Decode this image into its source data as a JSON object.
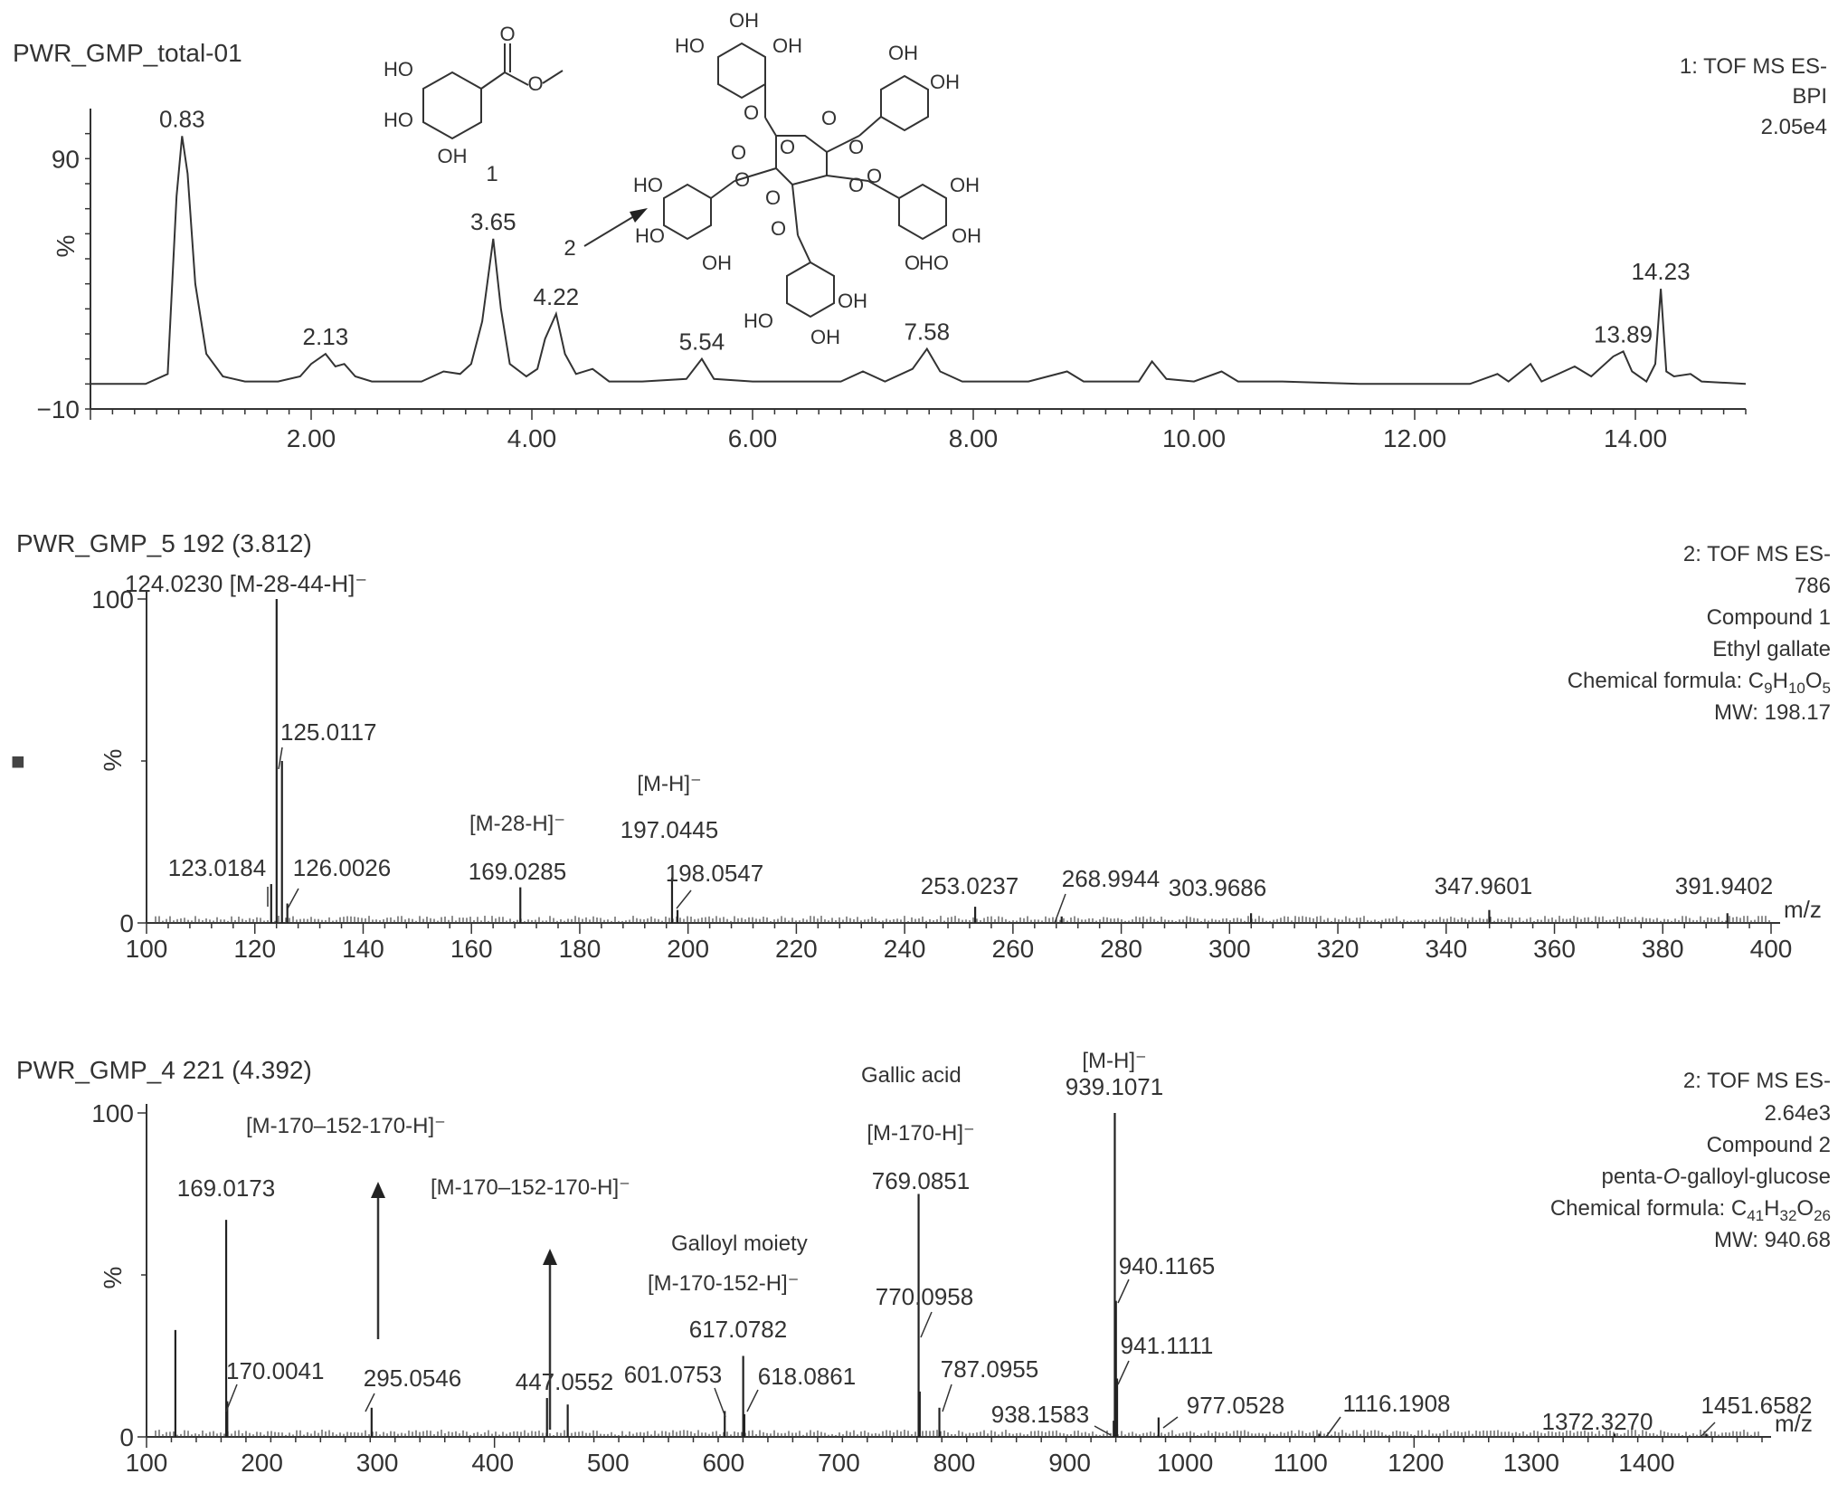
{
  "chart_data": [
    {
      "type": "line",
      "panel": "chromatogram",
      "title": "PWR_GMP_total-01",
      "info": [
        "1: TOF MS ES-",
        "BPI",
        "2.05e4"
      ],
      "ylabel": "%",
      "xlim": [
        0.0,
        15.0
      ],
      "ylim": [
        -10,
        110
      ],
      "x_ticks": [
        "2.00",
        "4.00",
        "6.00",
        "8.00",
        "10.00",
        "12.00",
        "14.00"
      ],
      "y_ticks": [
        "90",
        "-10"
      ],
      "series": [
        {
          "x": [
            0.0,
            0.5,
            0.7,
            0.78,
            0.83,
            0.88,
            0.95,
            1.05,
            1.2,
            1.4,
            1.7,
            1.9,
            2.0,
            2.13,
            2.22,
            2.3,
            2.4,
            2.55,
            3.0,
            3.2,
            3.35,
            3.45,
            3.55,
            3.65,
            3.72,
            3.8,
            3.95,
            4.05,
            4.12,
            4.22,
            4.3,
            4.4,
            4.55,
            4.7,
            5.0,
            5.4,
            5.54,
            5.65,
            6.0,
            6.8,
            7.0,
            7.2,
            7.45,
            7.58,
            7.7,
            7.9,
            8.5,
            8.85,
            9.0,
            9.5,
            9.62,
            9.75,
            10.0,
            10.25,
            10.4,
            10.8,
            11.5,
            12.5,
            12.75,
            12.85,
            13.05,
            13.15,
            13.45,
            13.6,
            13.8,
            13.89,
            13.97,
            14.1,
            14.18,
            14.23,
            14.28,
            14.35,
            14.5,
            14.6,
            15.0
          ],
          "y": [
            0,
            0,
            4,
            75,
            99,
            84,
            40,
            12,
            3,
            1,
            1,
            3,
            8,
            12,
            7,
            8,
            3,
            1,
            1,
            5,
            4,
            8,
            25,
            58,
            30,
            8,
            3,
            6,
            18,
            28,
            12,
            4,
            6,
            1,
            1,
            2,
            10,
            2,
            1,
            1,
            5,
            1,
            6,
            14,
            5,
            1,
            1,
            5,
            1,
            1,
            9,
            2,
            1,
            5,
            1,
            1,
            0,
            0,
            4,
            1,
            8,
            1,
            7,
            3,
            11,
            13,
            5,
            1,
            8,
            38,
            5,
            3,
            4,
            1,
            0
          ]
        }
      ],
      "peak_labels": [
        {
          "x": 0.83,
          "y": 99,
          "label": "0.83"
        },
        {
          "x": 2.13,
          "y": 12,
          "label": "2.13"
        },
        {
          "x": 3.65,
          "y": 58,
          "label": "3.65"
        },
        {
          "x": 4.22,
          "y": 28,
          "label": "4.22"
        },
        {
          "x": 5.54,
          "y": 10,
          "label": "5.54"
        },
        {
          "x": 7.58,
          "y": 14,
          "label": "7.58"
        },
        {
          "x": 13.89,
          "y": 13,
          "label": "13.89"
        },
        {
          "x": 14.23,
          "y": 38,
          "label": "14.23"
        }
      ],
      "compound_markers": [
        "1",
        "2"
      ],
      "structure_atoms": {
        "ethyl_gallate": [
          "O",
          "HO",
          "O",
          "HO",
          "OH"
        ],
        "pgg": [
          "OH",
          "HO",
          "OH",
          "O",
          "O",
          "OH",
          "OH",
          "O",
          "O",
          "O",
          "O",
          "O",
          "HO",
          "O",
          "O",
          "O",
          "OH",
          "HO",
          "OH",
          "OH",
          "O",
          "HO",
          "OH",
          "HO",
          "OH"
        ]
      }
    },
    {
      "type": "bar",
      "panel": "ms-spectrum-1",
      "title": "PWR_GMP_5 192 (3.812)",
      "info": [
        "2: TOF MS ES-",
        "786",
        "Compound 1",
        "Ethyl gallate",
        "Chemical formula: C9H10O5",
        "MW: 198.17"
      ],
      "ylabel": "%",
      "xlabel": "m/z",
      "xlim": [
        100,
        400
      ],
      "ylim": [
        0,
        100
      ],
      "x_ticks": [
        "100",
        "120",
        "140",
        "160",
        "180",
        "200",
        "220",
        "240",
        "260",
        "280",
        "300",
        "320",
        "340",
        "360",
        "380",
        "400"
      ],
      "y_ticks": [
        "100",
        "0"
      ],
      "peaks": [
        {
          "mz": 123.0184,
          "intensity": 12,
          "label": "123.0184"
        },
        {
          "mz": 124.023,
          "intensity": 100,
          "label": "124.0230 [M-28-44-H]⁻"
        },
        {
          "mz": 125.0117,
          "intensity": 50,
          "label": "125.0117"
        },
        {
          "mz": 126.0026,
          "intensity": 6,
          "label": "126.0026"
        },
        {
          "mz": 169.0285,
          "intensity": 11,
          "label": "169.0285",
          "annotation": "[M-28-H]⁻"
        },
        {
          "mz": 197.0445,
          "intensity": 14,
          "label": "197.0445",
          "annotation": "[M-H]⁻"
        },
        {
          "mz": 198.0547,
          "intensity": 4,
          "label": "198.0547"
        },
        {
          "mz": 253.0237,
          "intensity": 5,
          "label": "253.0237"
        },
        {
          "mz": 268.9944,
          "intensity": 2,
          "label": "268.9944"
        },
        {
          "mz": 303.9686,
          "intensity": 3,
          "label": "303.9686"
        },
        {
          "mz": 347.9601,
          "intensity": 4,
          "label": "347.9601"
        },
        {
          "mz": 391.9402,
          "intensity": 3,
          "label": "391.9402"
        }
      ]
    },
    {
      "type": "bar",
      "panel": "ms-spectrum-2",
      "title": "PWR_GMP_4 221 (4.392)",
      "info": [
        "2: TOF MS ES-",
        "2.64e3",
        "Compound 2",
        "penta-O-galloyl-glucose",
        "Chemical formula: C41H32O26",
        "MW: 940.68"
      ],
      "ylabel": "%",
      "xlabel": "m/z",
      "xlim": [
        100,
        1500
      ],
      "ylim": [
        0,
        100
      ],
      "x_ticks": [
        "100",
        "200",
        "300",
        "400",
        "500",
        "600",
        "700",
        "800",
        "900",
        "1000",
        "1100",
        "1200",
        "1300",
        "1400"
      ],
      "y_ticks": [
        "100",
        "0"
      ],
      "peaks": [
        {
          "mz": 125.0,
          "intensity": 33
        },
        {
          "mz": 169.0173,
          "intensity": 67,
          "label": "169.0173"
        },
        {
          "mz": 170.0041,
          "intensity": 11,
          "label": "170.0041"
        },
        {
          "mz": 295.0546,
          "intensity": 9,
          "label": "295.0546"
        },
        {
          "mz": 447.0552,
          "intensity": 12,
          "label": "447.0552"
        },
        {
          "mz": 465.0,
          "intensity": 10
        },
        {
          "mz": 601.0753,
          "intensity": 8,
          "label": "601.0753"
        },
        {
          "mz": 617.0782,
          "intensity": 25,
          "label": "617.0782"
        },
        {
          "mz": 618.0861,
          "intensity": 7,
          "label": "618.0861"
        },
        {
          "mz": 769.0851,
          "intensity": 75,
          "label": "769.0851",
          "annotation": "[M-170-H]⁻"
        },
        {
          "mz": 770.0958,
          "intensity": 14,
          "label": "770.0958"
        },
        {
          "mz": 787.0955,
          "intensity": 9,
          "label": "787.0955"
        },
        {
          "mz": 938.1583,
          "intensity": 5,
          "label": "938.1583"
        },
        {
          "mz": 939.1071,
          "intensity": 100,
          "label": "939.1071",
          "annotation": "[M-H]⁻"
        },
        {
          "mz": 940.1165,
          "intensity": 42,
          "label": "940.1165"
        },
        {
          "mz": 941.1111,
          "intensity": 18,
          "label": "941.1111"
        },
        {
          "mz": 977.0528,
          "intensity": 6,
          "label": "977.0528"
        },
        {
          "mz": 1116.1908,
          "intensity": 1,
          "label": "1116.1908"
        },
        {
          "mz": 1372.327,
          "intensity": 1,
          "label": "1372.3270"
        },
        {
          "mz": 1451.6582,
          "intensity": 1,
          "label": "1451.6582"
        }
      ],
      "annotations": [
        "[M-170–152-170-H]⁻",
        "[M-170–152-170-H]⁻",
        "Galloyl moiety",
        "[M-170-152-H]⁻",
        "Gallic acid"
      ]
    }
  ],
  "stray_marker": "■"
}
